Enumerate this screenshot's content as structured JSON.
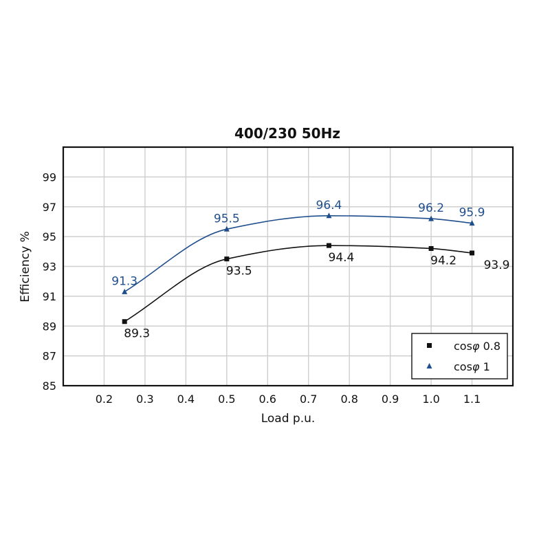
{
  "chart_data": {
    "type": "line",
    "title": "400/230 50Hz",
    "xlabel": "Load p.u.",
    "ylabel": "Efficiency %",
    "xlim": [
      0.1,
      1.2
    ],
    "ylim": [
      85,
      101
    ],
    "xticks": [
      0.2,
      0.3,
      0.4,
      0.5,
      0.6,
      0.7,
      0.8,
      0.9,
      1.0,
      1.1
    ],
    "xtick_labels": [
      "0.2",
      "0.3",
      "0.4",
      "0.5",
      "0.6",
      "0.7",
      "0.8",
      "0.9",
      "1.0",
      "1.1"
    ],
    "yticks": [
      85,
      87,
      89,
      91,
      93,
      95,
      97,
      99
    ],
    "ytick_labels": [
      "85",
      "87",
      "89",
      "91",
      "93",
      "95",
      "97",
      "99"
    ],
    "grid": true,
    "legend_position": "bottom-right",
    "series": [
      {
        "name": "cosφ 0.8",
        "legend_prefix": "cos",
        "legend_symbol": "φ",
        "legend_suffix": " 0.8",
        "marker": "square",
        "color": "#111111",
        "x": [
          0.25,
          0.5,
          0.75,
          1.0,
          1.1
        ],
        "y": [
          89.3,
          93.5,
          94.4,
          94.2,
          93.9
        ],
        "labels": [
          "89.3",
          "93.5",
          "94.4",
          "94.2",
          "93.9"
        ],
        "label_side": "below"
      },
      {
        "name": "cosφ 1",
        "legend_prefix": "cos",
        "legend_symbol": "φ",
        "legend_suffix": " 1",
        "marker": "triangle",
        "color": "#1f4e8c",
        "x": [
          0.25,
          0.5,
          0.75,
          1.0,
          1.1
        ],
        "y": [
          91.3,
          95.5,
          96.4,
          96.2,
          95.9
        ],
        "labels": [
          "91.3",
          "95.5",
          "96.4",
          "96.2",
          "95.9"
        ],
        "label_side": "above"
      }
    ]
  }
}
